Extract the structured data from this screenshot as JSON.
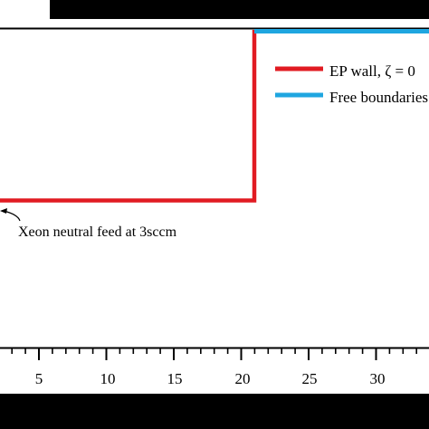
{
  "legend": {
    "items": [
      {
        "label": "EP wall, ζ = 0",
        "color": "#e11b22"
      },
      {
        "label": "Free boundaries",
        "color": "#1fa6e0"
      }
    ]
  },
  "annotation": {
    "text": "Xeon neutral feed at 3sccm"
  },
  "x_axis": {
    "tick_labels": [
      "5",
      "10",
      "15",
      "20",
      "25",
      "30"
    ]
  },
  "colors": {
    "ep_wall": "#e11b22",
    "free_boundary": "#1fa6e0",
    "frame": "#000000",
    "band": "#000000"
  }
}
